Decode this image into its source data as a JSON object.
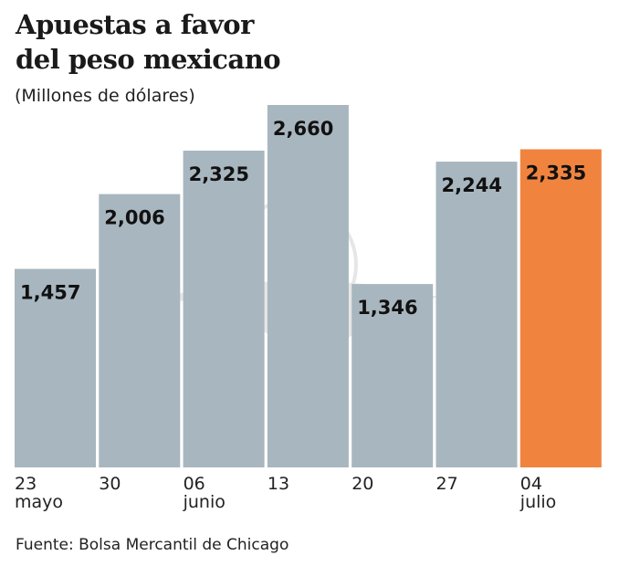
{
  "chart_data": {
    "type": "bar",
    "title": "Apuestas a favor del peso mexicano",
    "title_lines": [
      "Apuestas a favor",
      "del peso mexicano"
    ],
    "subtitle": "(Millones de dólares)",
    "categories": [
      [
        "23",
        "mayo"
      ],
      [
        "30",
        ""
      ],
      [
        "06",
        "junio"
      ],
      [
        "13",
        ""
      ],
      [
        "20",
        ""
      ],
      [
        "27",
        ""
      ],
      [
        "04",
        "julio"
      ]
    ],
    "values": [
      1457,
      2006,
      2325,
      2660,
      1346,
      2244,
      2335
    ],
    "value_labels": [
      "1,457",
      "2,006",
      "2,325",
      "2,660",
      "1,346",
      "2,244",
      "2,335"
    ],
    "highlight_index": 6,
    "colors": {
      "bar": "#a8b6bf",
      "highlight": "#f0843f"
    },
    "ylim": [
      0,
      2660
    ],
    "grid": false,
    "source": "Fuente: Bolsa Mercantil de Chicago"
  }
}
